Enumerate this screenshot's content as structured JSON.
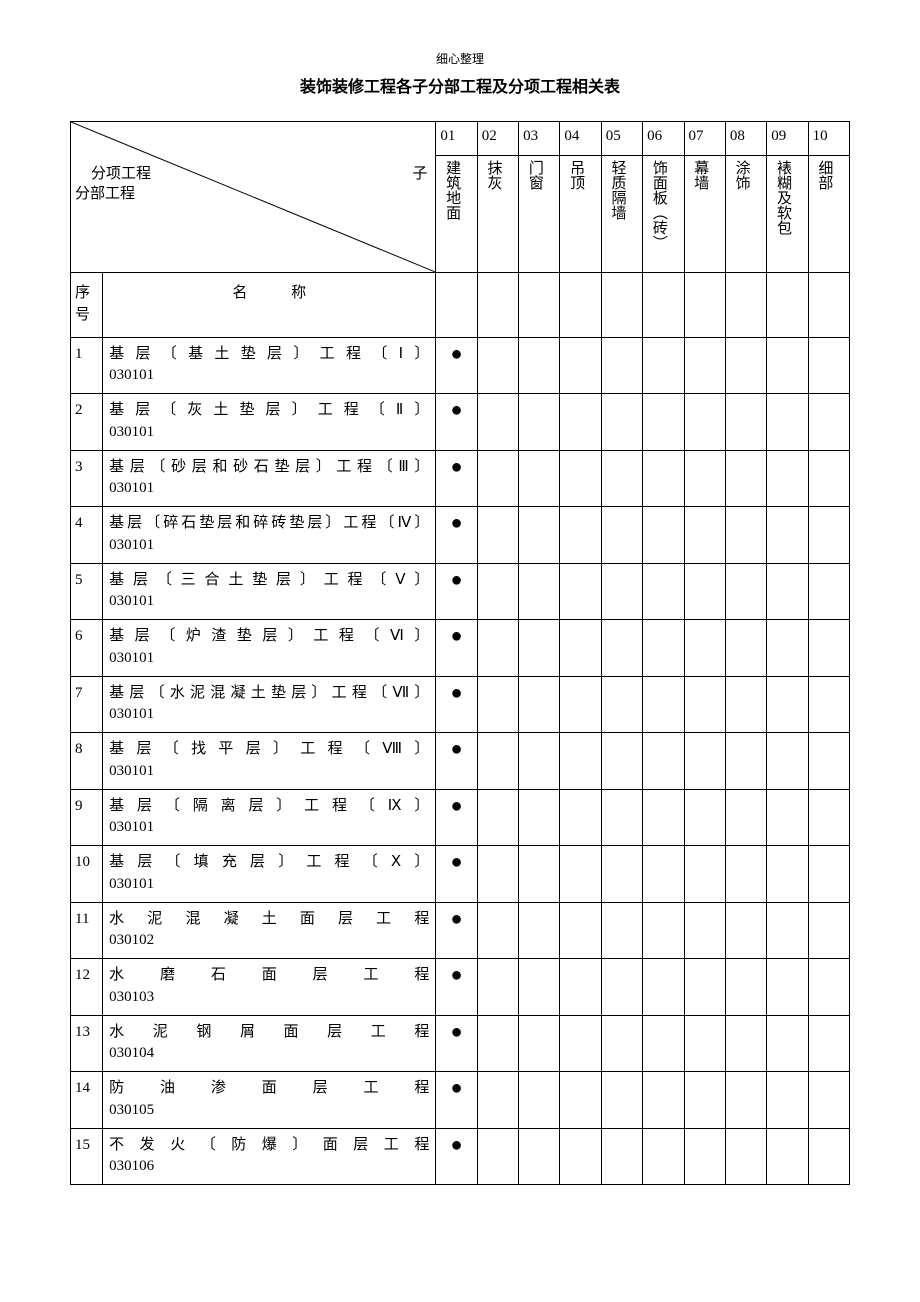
{
  "header_small": "细心整理",
  "title": "装饰装修工程各子分部工程及分项工程相关表",
  "diag": {
    "upper": "分项工程",
    "right": "子",
    "lower": "分部工程"
  },
  "columns": [
    {
      "num": "01",
      "label": "建筑地面"
    },
    {
      "num": "02",
      "label": "抹灰"
    },
    {
      "num": "03",
      "label": "门窗"
    },
    {
      "num": "04",
      "label": "吊顶"
    },
    {
      "num": "05",
      "label": "轻质隔墙"
    },
    {
      "num": "06",
      "label": "饰面板（砖）"
    },
    {
      "num": "07",
      "label": "幕墙"
    },
    {
      "num": "08",
      "label": "涂饰"
    },
    {
      "num": "09",
      "label": "裱糊及软包"
    },
    {
      "num": "10",
      "label": "细部"
    }
  ],
  "row_header": {
    "seq": "序号",
    "name": "名 称"
  },
  "rows": [
    {
      "seq": "1",
      "name": "基层〔基土垫层〕工程〔Ⅰ〕",
      "code": "030101",
      "marks": [
        true,
        false,
        false,
        false,
        false,
        false,
        false,
        false,
        false,
        false
      ]
    },
    {
      "seq": "2",
      "name": "基层〔灰土垫层〕工程〔Ⅱ〕",
      "code": "030101",
      "marks": [
        true,
        false,
        false,
        false,
        false,
        false,
        false,
        false,
        false,
        false
      ]
    },
    {
      "seq": "3",
      "name": "基层〔砂层和砂石垫层〕工程〔Ⅲ〕",
      "code": "030101",
      "marks": [
        true,
        false,
        false,
        false,
        false,
        false,
        false,
        false,
        false,
        false
      ]
    },
    {
      "seq": "4",
      "name": "基层〔碎石垫层和碎砖垫层〕工程〔Ⅳ〕",
      "code": "030101",
      "code_inline": true,
      "marks": [
        true,
        false,
        false,
        false,
        false,
        false,
        false,
        false,
        false,
        false
      ]
    },
    {
      "seq": "5",
      "name": "基层〔三合土垫层〕工程〔Ⅴ〕",
      "code": "030101",
      "marks": [
        true,
        false,
        false,
        false,
        false,
        false,
        false,
        false,
        false,
        false
      ]
    },
    {
      "seq": "6",
      "name": "基层〔炉渣垫层〕工程〔Ⅵ〕",
      "code": "030101",
      "marks": [
        true,
        false,
        false,
        false,
        false,
        false,
        false,
        false,
        false,
        false
      ]
    },
    {
      "seq": "7",
      "name": "基层〔水泥混凝土垫层〕工程〔Ⅶ〕",
      "code": "030101",
      "marks": [
        true,
        false,
        false,
        false,
        false,
        false,
        false,
        false,
        false,
        false
      ]
    },
    {
      "seq": "8",
      "name": "基层〔找平层〕工程〔Ⅷ〕",
      "code": "030101",
      "marks": [
        true,
        false,
        false,
        false,
        false,
        false,
        false,
        false,
        false,
        false
      ]
    },
    {
      "seq": "9",
      "name": "基层〔隔离层〕工程〔Ⅸ〕",
      "code": "030101",
      "marks": [
        true,
        false,
        false,
        false,
        false,
        false,
        false,
        false,
        false,
        false
      ]
    },
    {
      "seq": "10",
      "name": "基层〔填充层〕工程〔Ⅹ〕",
      "code": "030101",
      "marks": [
        true,
        false,
        false,
        false,
        false,
        false,
        false,
        false,
        false,
        false
      ]
    },
    {
      "seq": "11",
      "name": "水泥混凝土面层工程",
      "code": "030102",
      "marks": [
        true,
        false,
        false,
        false,
        false,
        false,
        false,
        false,
        false,
        false
      ]
    },
    {
      "seq": "12",
      "name": "水磨石面层工程",
      "code": "030103",
      "marks": [
        true,
        false,
        false,
        false,
        false,
        false,
        false,
        false,
        false,
        false
      ]
    },
    {
      "seq": "13",
      "name": "水泥钢屑面层工程",
      "code": "030104",
      "marks": [
        true,
        false,
        false,
        false,
        false,
        false,
        false,
        false,
        false,
        false
      ]
    },
    {
      "seq": "14",
      "name": "防油渗面层工程",
      "code": "030105",
      "marks": [
        true,
        false,
        false,
        false,
        false,
        false,
        false,
        false,
        false,
        false
      ]
    },
    {
      "seq": "15",
      "name": "不发火〔防爆〕面层工程",
      "code": "030106",
      "marks": [
        true,
        false,
        false,
        false,
        false,
        false,
        false,
        false,
        false,
        false
      ]
    }
  ],
  "dot": "●"
}
